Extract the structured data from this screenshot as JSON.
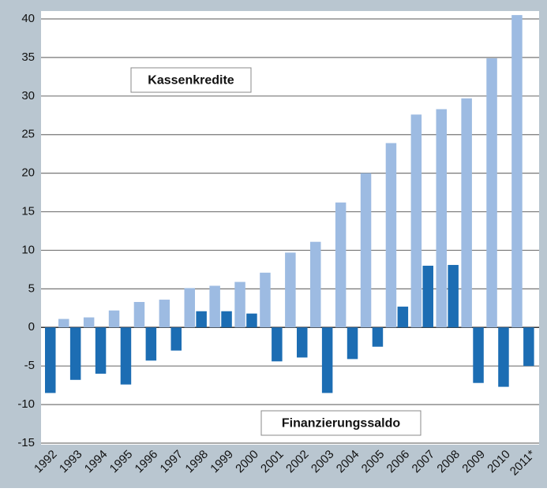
{
  "chart_data": {
    "type": "bar",
    "categories": [
      "1992",
      "1993",
      "1994",
      "1995",
      "1996",
      "1997",
      "1998",
      "1999",
      "2000",
      "2001",
      "2002",
      "2003",
      "2004",
      "2005",
      "2006",
      "2007",
      "2008",
      "2009",
      "2010",
      "2011*"
    ],
    "series": [
      {
        "name": "Finanzierungssaldo",
        "color": "#1c6db3",
        "values": [
          -8.5,
          -6.8,
          -6.0,
          -7.4,
          -4.3,
          -3.0,
          2.1,
          2.1,
          1.8,
          -4.4,
          -3.9,
          -8.5,
          -4.1,
          -2.5,
          2.7,
          8.0,
          8.1,
          -7.2,
          -7.7,
          -5.0
        ]
      },
      {
        "name": "Kassenkredite",
        "color": "#9dbbe2",
        "values": [
          1.1,
          1.3,
          2.2,
          3.3,
          3.6,
          5.1,
          5.4,
          5.9,
          7.1,
          9.7,
          11.1,
          16.2,
          20.0,
          23.9,
          27.6,
          28.3,
          29.7,
          34.9,
          40.5,
          null
        ]
      }
    ],
    "ylim": [
      -15,
      40
    ],
    "yticks": [
      -15,
      -10,
      -5,
      0,
      5,
      10,
      15,
      20,
      25,
      30,
      35,
      40
    ],
    "grid": true
  }
}
